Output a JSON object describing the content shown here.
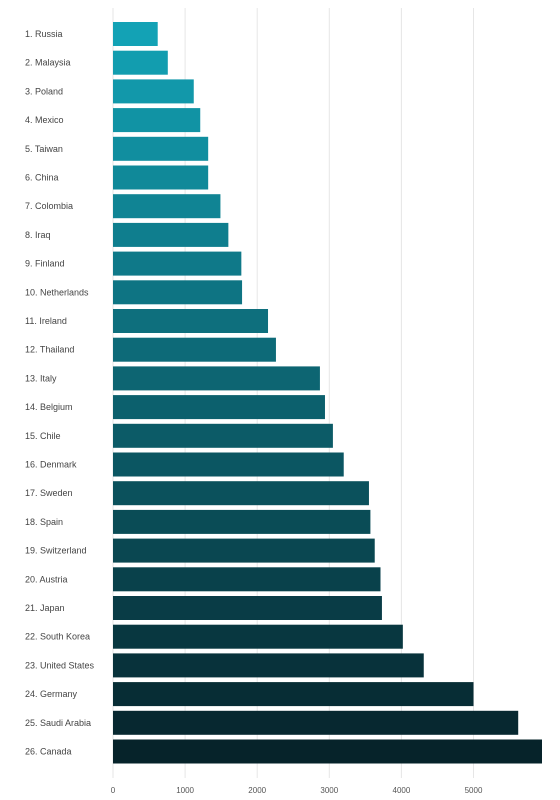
{
  "chart_data": {
    "type": "bar",
    "orientation": "horizontal",
    "title": "",
    "xlabel": "",
    "ylabel": "",
    "categories": [
      "1. Russia",
      "2. Malaysia",
      "3. Poland",
      "4. Mexico",
      "5. Taiwan",
      "6. China",
      "7. Colombia",
      "8. Iraq",
      "9. Finland",
      "10. Netherlands",
      "11. Ireland",
      "12. Thailand",
      "13. Italy",
      "14. Belgium",
      "15. Chile",
      "16. Denmark",
      "17. Sweden",
      "18. Spain",
      "19. Switzerland",
      "20. Austria",
      "21. Japan",
      "22. South Korea",
      "23. United States",
      "24. Germany",
      "25. Saudi Arabia",
      "26. Canada"
    ],
    "values": [
      620,
      760,
      1120,
      1210,
      1320,
      1320,
      1490,
      1600,
      1780,
      1790,
      2150,
      2260,
      2870,
      2940,
      3050,
      3200,
      3550,
      3570,
      3630,
      3710,
      3730,
      4020,
      4310,
      5000,
      5620,
      5950
    ],
    "xlim": [
      0,
      5950
    ],
    "xticks": [
      0,
      1000,
      2000,
      3000,
      4000,
      5000
    ],
    "xtick_labels": [
      "0",
      "1000",
      "2000",
      "3000",
      "4000",
      "5000"
    ],
    "grid": "vertical",
    "legend": "none",
    "colors": {
      "bar_start": "#13a2b5",
      "bar_end": "#06232a",
      "grid": "#e6e6e6",
      "label": "#444444"
    }
  }
}
